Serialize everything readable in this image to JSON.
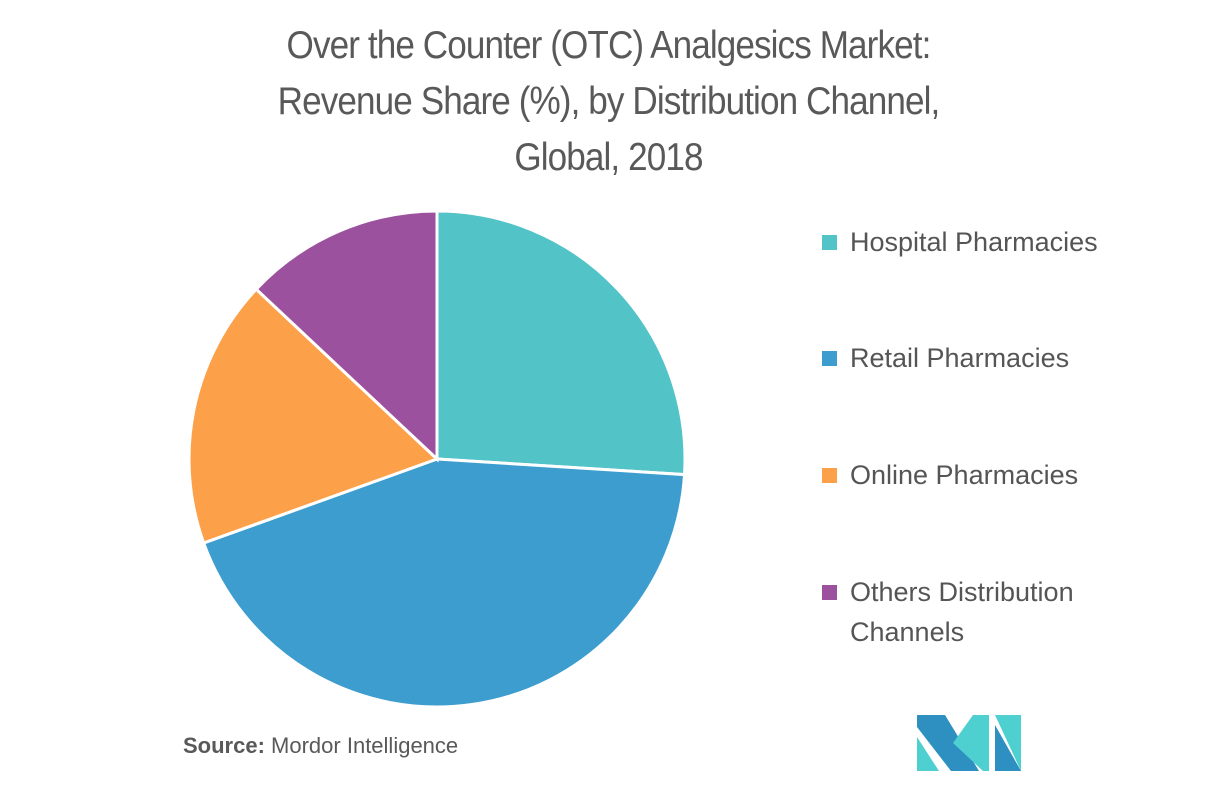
{
  "chart_data": {
    "type": "pie",
    "title": "Over the Counter (OTC) Analgesics Market: Revenue Share (%), by Distribution Channel, Global, 2018",
    "title_lines": [
      "Over the Counter (OTC) Analgesics Market:",
      "Revenue Share (%), by Distribution Channel,",
      "Global, 2018"
    ],
    "categories": [
      "Hospital Pharmacies",
      "Retail Pharmacies",
      "Online Pharmacies",
      "Others Distribution Channels"
    ],
    "values": [
      26,
      43.5,
      17.5,
      13
    ],
    "colors": [
      "#52C3C6",
      "#3D9DCE",
      "#FCA049",
      "#9B519E"
    ],
    "start_angle_deg": 0,
    "direction": "clockwise",
    "legend_position": "right",
    "data_labels": false
  },
  "legend": {
    "items": [
      {
        "label": "Hospital Pharmacies",
        "color": "#52C3C6"
      },
      {
        "label": "Retail Pharmacies",
        "color": "#3D9DCE"
      },
      {
        "label": "Online Pharmacies",
        "color": "#FCA049"
      },
      {
        "label": "Others Distribution Channels",
        "color": "#9B519E"
      }
    ]
  },
  "source": {
    "label": "Source:",
    "text": "Mordor Intelligence"
  },
  "logo": {
    "icon": "mordor-intelligence-logo",
    "colors": [
      "#2E8FC1",
      "#4ECFD0"
    ]
  }
}
